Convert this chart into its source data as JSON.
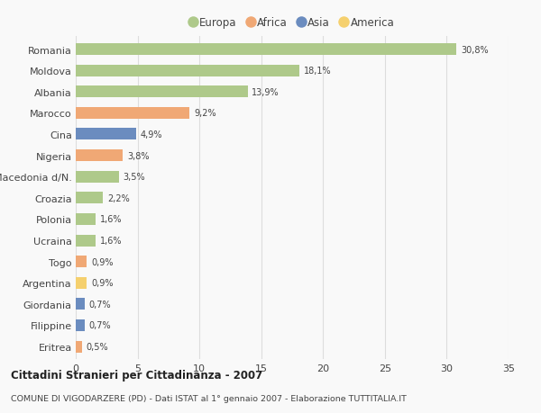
{
  "countries": [
    "Romania",
    "Moldova",
    "Albania",
    "Marocco",
    "Cina",
    "Nigeria",
    "Macedonia d/N.",
    "Croazia",
    "Polonia",
    "Ucraina",
    "Togo",
    "Argentina",
    "Giordania",
    "Filippine",
    "Eritrea"
  ],
  "values": [
    30.8,
    18.1,
    13.9,
    9.2,
    4.9,
    3.8,
    3.5,
    2.2,
    1.6,
    1.6,
    0.9,
    0.9,
    0.7,
    0.7,
    0.5
  ],
  "labels": [
    "30,8%",
    "18,1%",
    "13,9%",
    "9,2%",
    "4,9%",
    "3,8%",
    "3,5%",
    "2,2%",
    "1,6%",
    "1,6%",
    "0,9%",
    "0,9%",
    "0,7%",
    "0,7%",
    "0,5%"
  ],
  "continents": [
    "Europa",
    "Europa",
    "Europa",
    "Africa",
    "Asia",
    "Africa",
    "Europa",
    "Europa",
    "Europa",
    "Europa",
    "Africa",
    "America",
    "Asia",
    "Asia",
    "Africa"
  ],
  "continent_colors": {
    "Europa": "#aec98a",
    "Africa": "#f0a875",
    "Asia": "#6b8cbf",
    "America": "#f5d06e"
  },
  "legend_order": [
    "Europa",
    "Africa",
    "Asia",
    "America"
  ],
  "xlim": [
    0,
    35
  ],
  "xticks": [
    0,
    5,
    10,
    15,
    20,
    25,
    30,
    35
  ],
  "title": "Cittadini Stranieri per Cittadinanza - 2007",
  "subtitle": "COMUNE DI VIGODARZERE (PD) - Dati ISTAT al 1° gennaio 2007 - Elaborazione TUTTITALIA.IT",
  "background_color": "#f9f9f9",
  "bar_height": 0.55,
  "grid_color": "#dddddd",
  "text_color": "#444444"
}
